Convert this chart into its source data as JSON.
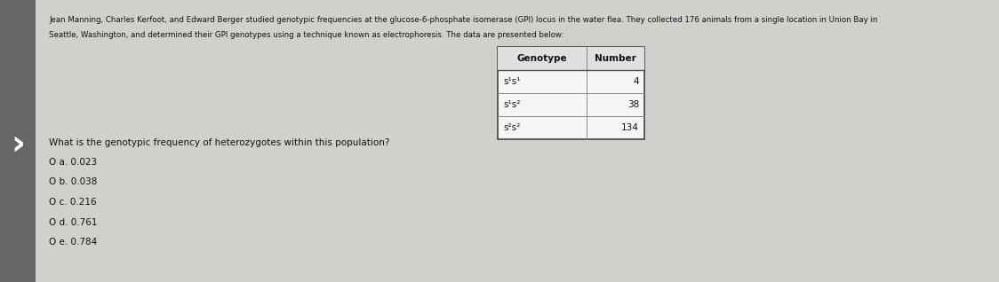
{
  "background_color": "#c8c8c8",
  "sidebar_color": "#666666",
  "page_color": "#d8d8d8",
  "paragraph_text_line1": "Jean Manning, Charles Kerfoot, and Edward Berger studied genotypic frequencies at the glucose-6-phosphate isomerase (GPI) locus in the water flea. They collected 176 animals from a single location in Union Bay in",
  "paragraph_text_line2": "Seattle, Washington, and determined their GPI genotypes using a technique known as electrophoresis. The data are presented below:",
  "table_header": [
    "Genotype",
    "Number"
  ],
  "table_rows": [
    [
      "s¹s¹",
      "4"
    ],
    [
      "s¹s²",
      "38"
    ],
    [
      "s²s²",
      "134"
    ]
  ],
  "question": "What is the genotypic frequency of heterozygotes within this population?",
  "choices": [
    "O a. 0.023",
    "O b. 0.038",
    "O c. 0.216",
    "O d. 0.761",
    "O e. 0.784"
  ],
  "text_color": "#111111",
  "table_bg": "#f0f0f0",
  "header_bg": "#e0e0e0",
  "cell_bg": "#f5f5f5"
}
